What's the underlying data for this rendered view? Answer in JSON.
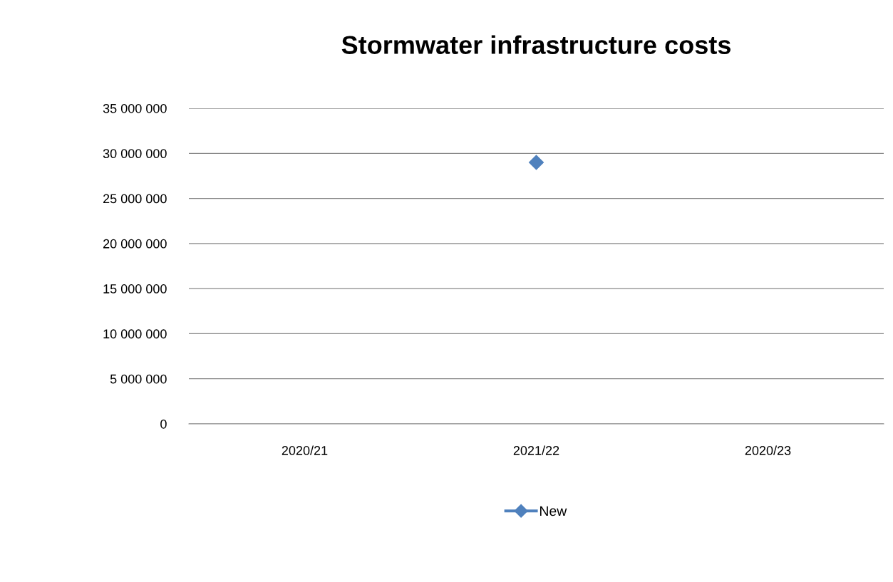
{
  "chart_data": {
    "type": "line",
    "title": "Stormwater infrastructure costs",
    "categories": [
      "2020/21",
      "2021/22",
      "2020/23"
    ],
    "series": [
      {
        "name": "New",
        "color": "#4f81bd",
        "values": [
          null,
          29000000,
          null
        ]
      }
    ],
    "ylim": [
      0,
      35000000
    ],
    "yticks": [
      {
        "value": 0,
        "label": "0"
      },
      {
        "value": 5000000,
        "label": "5 000 000"
      },
      {
        "value": 10000000,
        "label": "10 000 000"
      },
      {
        "value": 15000000,
        "label": "15 000 000"
      },
      {
        "value": 20000000,
        "label": "20 000 000"
      },
      {
        "value": 25000000,
        "label": "25 000 000"
      },
      {
        "value": 30000000,
        "label": "30 000 000"
      },
      {
        "value": 35000000,
        "label": "35 000 000"
      }
    ],
    "grid": "y",
    "legend": "bottom",
    "marker": "diamond",
    "line_style": "solid"
  }
}
